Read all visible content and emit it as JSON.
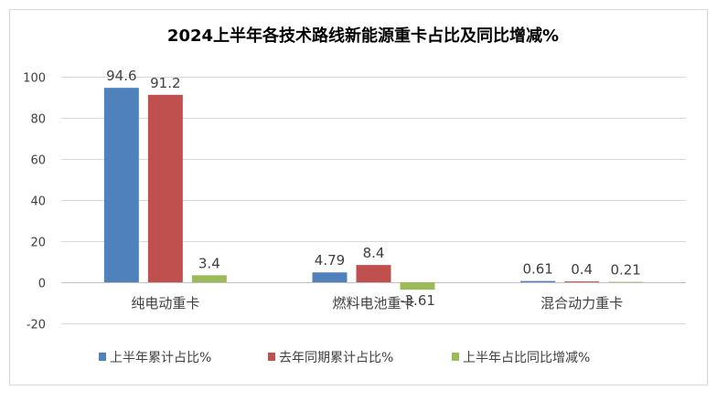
{
  "chart_data": {
    "type": "bar",
    "title": "2024上半年各技术路线新能源重卡占比及同比增减%",
    "categories": [
      "纯电动重卡",
      "燃料电池重卡",
      "混合动力重卡"
    ],
    "series": [
      {
        "name": "上半年累计占比%",
        "values": [
          94.6,
          4.79,
          0.61
        ],
        "labels": [
          "94.6",
          "4.79",
          "0.61"
        ],
        "color": "#4f81bd"
      },
      {
        "name": "去年同期累计占比%",
        "values": [
          91.2,
          8.4,
          0.4
        ],
        "labels": [
          "91.2",
          "8.4",
          "0.4"
        ],
        "color": "#c0504d"
      },
      {
        "name": "上半年占比同比增减%",
        "values": [
          3.4,
          -3.61,
          0.21
        ],
        "labels": [
          "3.4",
          "-3.61",
          "0.21"
        ],
        "color": "#9bbb59"
      }
    ],
    "ylim": [
      -20,
      100
    ],
    "yticks": [
      -20,
      0,
      20,
      40,
      60,
      80,
      100
    ],
    "ytick_labels": [
      "-20",
      "0",
      "20",
      "40",
      "60",
      "80",
      "100"
    ],
    "grid": true,
    "legend_position": "bottom",
    "xlabel": "",
    "ylabel": ""
  }
}
